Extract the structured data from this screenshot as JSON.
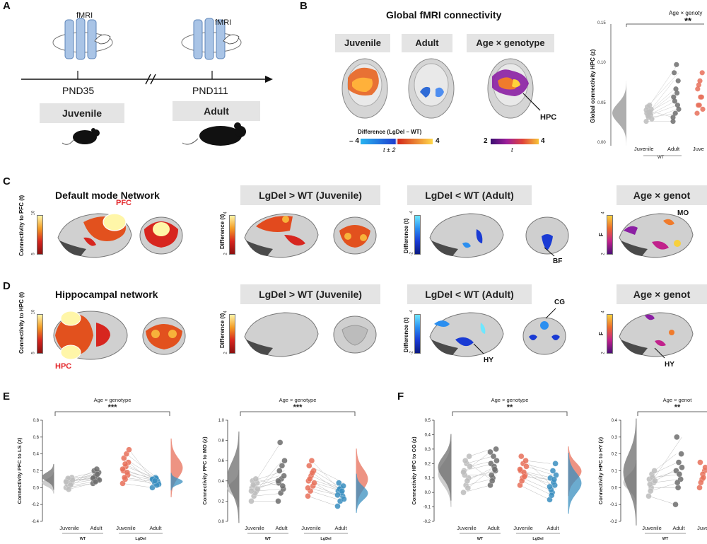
{
  "panels": {
    "A": "A",
    "B": "B",
    "C": "C",
    "D": "D",
    "E": "E",
    "F": "F"
  },
  "panelA": {
    "fmri_label_1": "fMRI",
    "fmri_label_2": "fMRI",
    "pnd_1": "PND35",
    "pnd_2": "PND111",
    "group_1": "Juvenile",
    "group_2": "Adult"
  },
  "panelB": {
    "title": "Global fMRI connectivity",
    "boxes": [
      "Juvenile",
      "Adult",
      "Age × genotype"
    ],
    "hpc_label": "HPC",
    "cbar1_title": "Difference (LgDel – WT)",
    "cbar1_min": "– 4",
    "cbar1_max": "4",
    "cbar1_t": "t ± 2",
    "cbar2_min": "2",
    "cbar2_max": "4",
    "cbar2_t": "t",
    "chart_title": "Age × genoty",
    "chart_sig": "**",
    "ylabel": "Global connectivity HPC (z)",
    "yticks": [
      "0.15",
      "0.10",
      "0.05",
      "0.00"
    ],
    "xticks": [
      "Juvenile",
      "Adult",
      "Juve"
    ],
    "group": "WT"
  },
  "panelC": {
    "title_1": "Default mode Network",
    "box_2": "LgDel > WT (Juvenile)",
    "box_3": "LgDel < WT (Adult)",
    "box_4": "Age × genot",
    "cbar1_label": "Connectivity to PFC (t)",
    "cbar1_max": "10",
    "cbar1_min": "5",
    "cbar2_label": "Difference (t)",
    "cbar2_max": "4",
    "cbar2_min": "2",
    "cbar3_label": "Difference (t)",
    "cbar3_max": "-4",
    "cbar3_min": "-2",
    "cbar4_label": "F",
    "cbar4_max": "4",
    "cbar4_min": "2",
    "pfc": "PFC",
    "bf": "BF",
    "mo": "MO"
  },
  "panelD": {
    "title_1": "Hippocampal network",
    "box_2": "LgDel > WT (Juvenile)",
    "box_3": "LgDel < WT (Adult)",
    "box_4": "Age × genot",
    "cbar1_label": "Connectivity to HPC (t)",
    "cbar1_max": "10",
    "cbar1_min": "5",
    "cbar2_label": "Difference (t)",
    "cbar2_max": "4",
    "cbar2_min": "2",
    "cbar3_label": "Difference (t)",
    "cbar3_max": "-4",
    "cbar3_min": "-2",
    "cbar4_label": "F",
    "cbar4_max": "4",
    "cbar4_min": "2",
    "hpc": "HPC",
    "hy1": "HY",
    "cg": "CG",
    "hy2": "HY"
  },
  "colors": {
    "wt_juv": "#bdbdbd",
    "wt_adult": "#6e6e6e",
    "lg_juv": "#e8705a",
    "lg_adult": "#3a8fc0",
    "box": "#e4e4e4",
    "accent_red": "#e3262a"
  },
  "chart_data": [
    {
      "type": "scatter",
      "title": "Age × genoty",
      "ylabel": "Global connectivity HPC (z)",
      "ylim": [
        0,
        0.15
      ],
      "categories": [
        "Juvenile",
        "Adult",
        "Juve"
      ],
      "series": [
        {
          "name": "",
          "values": [
            0.03,
            0.035,
            0.038,
            0.04,
            0.042,
            0.045,
            0.048,
            0.05,
            0.033,
            0.037,
            0.041,
            0.044
          ]
        },
        {
          "name": "",
          "values": [
            0.03,
            0.04,
            0.05,
            0.06,
            0.07,
            0.08,
            0.09,
            0.1,
            0.045,
            0.055,
            0.065,
            0.035
          ]
        },
        {
          "name": "",
          "values": [
            0.04,
            0.05,
            0.06,
            0.07,
            0.08,
            0.09,
            0.05,
            0.06,
            0.045,
            0.075
          ]
        }
      ],
      "annotation": "**"
    },
    {
      "type": "scatter",
      "title": "Age × genotype",
      "ylabel": "Connectivity PFC to LS (z)",
      "ylim": [
        -0.4,
        0.8
      ],
      "yticks": [
        "0.8",
        "0.6",
        "0.4",
        "0.2",
        "0.0",
        "-0.2",
        "-0.4"
      ],
      "categories": [
        "Juvenile",
        "Adult",
        "Juvenile",
        "Adult"
      ],
      "groups": [
        "WT",
        "LgDel"
      ],
      "series": [
        {
          "name": "",
          "values": [
            0.0,
            0.02,
            0.05,
            0.08,
            0.1,
            0.12,
            0.04,
            0.06,
            0.09,
            0.11,
            0.03,
            0.07,
            -0.02
          ]
        },
        {
          "name": "",
          "values": [
            0.05,
            0.08,
            0.1,
            0.12,
            0.15,
            0.18,
            0.2,
            0.22,
            0.09,
            0.13,
            0.16,
            0.11,
            0.07
          ]
        },
        {
          "name": "",
          "values": [
            0.05,
            0.1,
            0.15,
            0.2,
            0.25,
            0.3,
            0.35,
            0.4,
            0.45,
            0.12,
            0.18,
            0.22,
            0.28
          ]
        },
        {
          "name": "",
          "values": [
            0.0,
            0.05,
            0.08,
            0.1,
            0.12,
            0.06,
            0.09,
            0.11,
            0.04,
            0.07,
            0.03,
            0.1,
            0.08
          ]
        }
      ],
      "annotation": "***"
    },
    {
      "type": "scatter",
      "title": "Age × genotype",
      "ylabel": "Connectivity PFC to MO (z)",
      "ylim": [
        0.0,
        1.0
      ],
      "yticks": [
        "1.0",
        "0.8",
        "0.6",
        "0.4",
        "0.2",
        "0.0"
      ],
      "categories": [
        "Juvenile",
        "Adult",
        "Juvenile",
        "Adult"
      ],
      "groups": [
        "WT",
        "LgDel"
      ],
      "series": [
        {
          "name": "",
          "values": [
            0.2,
            0.25,
            0.3,
            0.33,
            0.35,
            0.38,
            0.4,
            0.28,
            0.32,
            0.36,
            0.42,
            0.3
          ]
        },
        {
          "name": "",
          "values": [
            0.2,
            0.28,
            0.32,
            0.38,
            0.42,
            0.45,
            0.5,
            0.55,
            0.6,
            0.78,
            0.35,
            0.4
          ]
        },
        {
          "name": "",
          "values": [
            0.25,
            0.3,
            0.35,
            0.4,
            0.45,
            0.5,
            0.55,
            0.6,
            0.38,
            0.42,
            0.48,
            0.33
          ]
        },
        {
          "name": "",
          "values": [
            0.15,
            0.2,
            0.25,
            0.3,
            0.33,
            0.35,
            0.38,
            0.28,
            0.22,
            0.32,
            0.3,
            0.26
          ]
        }
      ],
      "annotation": "***"
    },
    {
      "type": "scatter",
      "title": "Age × genotype",
      "ylabel": "Connectivity HPC to CG (z)",
      "ylim": [
        -0.2,
        0.5
      ],
      "yticks": [
        "0.5",
        "0.4",
        "0.3",
        "0.2",
        "0.1",
        "0.0",
        "-0.1",
        "-0.2"
      ],
      "categories": [
        "Juvenile",
        "Adult",
        "Juvenile",
        "Adult"
      ],
      "groups": [
        "WT",
        "LgDel"
      ],
      "series": [
        {
          "name": "",
          "values": [
            0.0,
            0.05,
            0.1,
            0.15,
            0.2,
            0.25,
            0.12,
            0.08,
            0.18,
            0.22,
            0.03,
            0.14
          ]
        },
        {
          "name": "",
          "values": [
            0.05,
            0.1,
            0.15,
            0.2,
            0.25,
            0.3,
            0.12,
            0.18,
            0.22,
            0.08,
            0.16,
            0.28
          ]
        },
        {
          "name": "",
          "values": [
            0.05,
            0.1,
            0.12,
            0.15,
            0.2,
            0.22,
            0.25,
            0.14,
            0.18,
            0.08,
            0.11,
            0.16
          ]
        },
        {
          "name": "",
          "values": [
            -0.05,
            0.0,
            0.05,
            0.1,
            0.15,
            0.2,
            0.02,
            0.07,
            0.12,
            -0.02,
            0.09,
            0.04
          ]
        }
      ],
      "annotation": "**"
    },
    {
      "type": "scatter",
      "title": "Age × genot",
      "ylabel": "Connectivity HPC to HY (z)",
      "ylim": [
        -0.2,
        0.4
      ],
      "yticks": [
        "0.4",
        "0.3",
        "0.2",
        "0.1",
        "0.0",
        "-0.1",
        "-0.2"
      ],
      "categories": [
        "Juvenile",
        "Adult",
        "Juve"
      ],
      "groups": [
        "WT"
      ],
      "series": [
        {
          "name": "",
          "values": [
            -0.05,
            0.0,
            0.03,
            0.05,
            0.08,
            0.1,
            0.02,
            0.06,
            0.04,
            -0.02
          ]
        },
        {
          "name": "",
          "values": [
            -0.1,
            0.0,
            0.05,
            0.1,
            0.15,
            0.2,
            0.3,
            0.08,
            0.12,
            0.03
          ]
        },
        {
          "name": "",
          "values": [
            0.0,
            0.05,
            0.1,
            0.15,
            0.08,
            0.12,
            0.03,
            0.06
          ]
        }
      ],
      "annotation": "**"
    }
  ]
}
